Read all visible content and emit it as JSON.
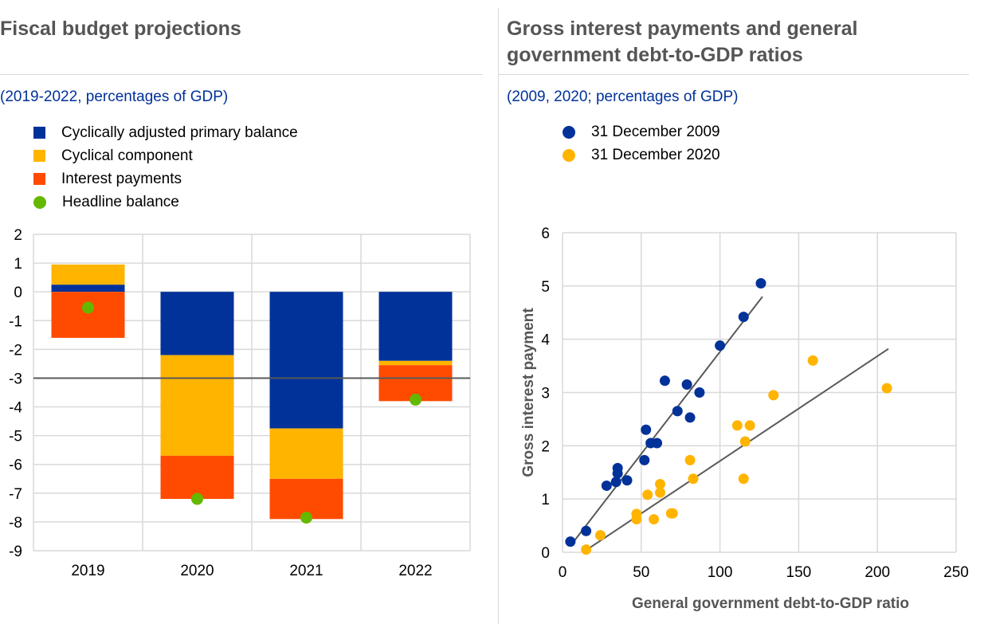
{
  "left": {
    "title": "Fiscal budget projections",
    "subtitle": "(2019-2022, percentages of GDP)",
    "legend": [
      {
        "label": "Cyclically adjusted primary balance",
        "color": "#003299",
        "shape": "square"
      },
      {
        "label": "Cyclical component",
        "color": "#ffb400",
        "shape": "square"
      },
      {
        "label": "Interest payments",
        "color": "#ff4b00",
        "shape": "square"
      },
      {
        "label": "Headline balance",
        "color": "#65b800",
        "shape": "circle"
      }
    ]
  },
  "right": {
    "title_line1": "Gross interest payments and general",
    "title_line2": "government debt-to-GDP ratios",
    "subtitle": "(2009, 2020; percentages of GDP)",
    "legend": [
      {
        "label": "31 December 2009",
        "color": "#003299"
      },
      {
        "label": "31 December 2020",
        "color": "#ffb400"
      }
    ]
  },
  "chart_data": [
    {
      "type": "bar",
      "stacked": true,
      "categories": [
        "2019",
        "2020",
        "2021",
        "2022"
      ],
      "ylim": [
        -9,
        2
      ],
      "yticks": [
        2,
        1,
        0,
        -1,
        -2,
        -3,
        -4,
        -5,
        -6,
        -7,
        -8,
        -9
      ],
      "reference_line": -3,
      "series": [
        {
          "name": "Cyclically adjusted primary balance",
          "color": "#003299",
          "values": [
            0.25,
            -2.2,
            -4.75,
            -2.4
          ]
        },
        {
          "name": "Cyclical component",
          "color": "#ffb400",
          "values": [
            0.7,
            -3.5,
            -1.75,
            -0.15
          ]
        },
        {
          "name": "Interest payments",
          "color": "#ff4b00",
          "values": [
            -1.6,
            -1.5,
            -1.4,
            -1.25
          ]
        }
      ],
      "headline_balance": {
        "name": "Headline balance",
        "color": "#65b800",
        "values": [
          -0.55,
          -7.2,
          -7.85,
          -3.75
        ]
      },
      "grid": true
    },
    {
      "type": "scatter",
      "xlabel": "General government debt-to-GDP ratio",
      "ylabel": "Gross interest payment",
      "xlim": [
        0,
        250
      ],
      "ylim": [
        0,
        6
      ],
      "xticks": [
        0,
        50,
        100,
        150,
        200,
        250
      ],
      "yticks": [
        0,
        1,
        2,
        3,
        4,
        5,
        6
      ],
      "grid": true,
      "series": [
        {
          "name": "31 December 2009",
          "color": "#003299",
          "points": [
            [
              5,
              0.2
            ],
            [
              15,
              0.4
            ],
            [
              28,
              1.25
            ],
            [
              34,
              1.32
            ],
            [
              35,
              1.48
            ],
            [
              35,
              1.58
            ],
            [
              41,
              1.35
            ],
            [
              52,
              1.73
            ],
            [
              53,
              2.3
            ],
            [
              56,
              2.05
            ],
            [
              60,
              2.05
            ],
            [
              65,
              3.22
            ],
            [
              73,
              2.65
            ],
            [
              79,
              3.15
            ],
            [
              81,
              2.53
            ],
            [
              87,
              3.0
            ],
            [
              100,
              3.88
            ],
            [
              115,
              4.42
            ],
            [
              126,
              5.05
            ]
          ],
          "trend": [
            [
              5,
              0.12
            ],
            [
              127,
              4.8
            ]
          ]
        },
        {
          "name": "31 December 2020",
          "color": "#ffb400",
          "points": [
            [
              15,
              0.05
            ],
            [
              24,
              0.32
            ],
            [
              47,
              0.72
            ],
            [
              47,
              0.62
            ],
            [
              54,
              1.08
            ],
            [
              58,
              0.62
            ],
            [
              62,
              1.28
            ],
            [
              62,
              1.12
            ],
            [
              69,
              0.73
            ],
            [
              70,
              0.73
            ],
            [
              81,
              1.73
            ],
            [
              83,
              1.38
            ],
            [
              111,
              2.38
            ],
            [
              115,
              1.38
            ],
            [
              116,
              2.08
            ],
            [
              119,
              2.38
            ],
            [
              134,
              2.95
            ],
            [
              159,
              3.6
            ],
            [
              206,
              3.08
            ]
          ],
          "trend": [
            [
              14,
              0.02
            ],
            [
              207,
              3.82
            ]
          ]
        }
      ]
    }
  ]
}
